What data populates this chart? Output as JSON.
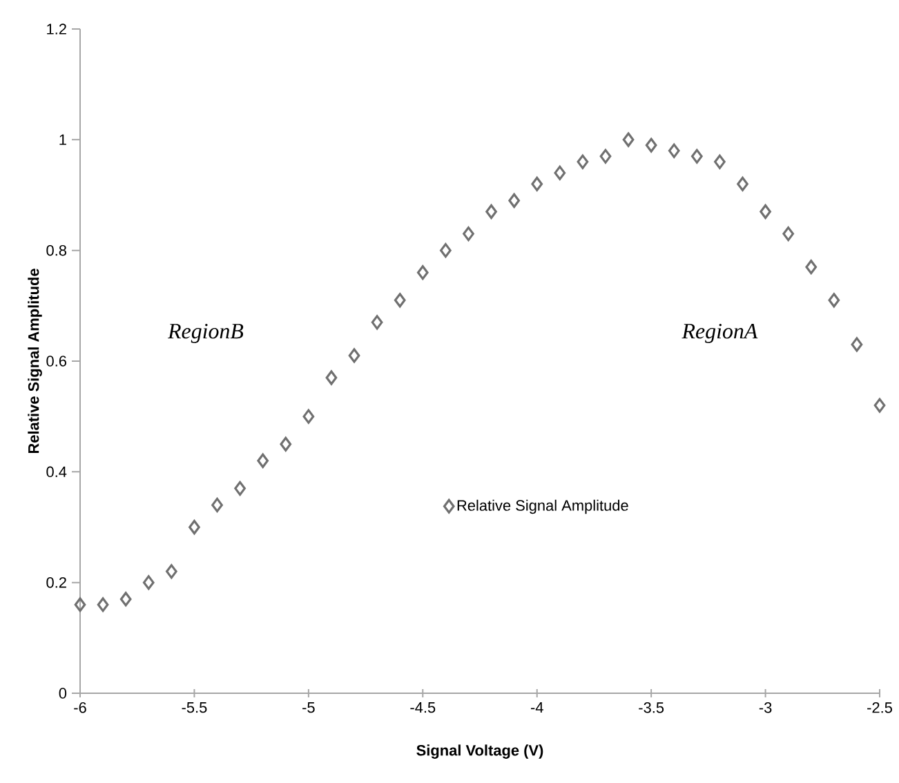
{
  "chart_data": {
    "type": "scatter",
    "xlabel": "Signal Voltage (V)",
    "ylabel": "Relative Signal Amplitude",
    "x": [
      -6,
      -5.9,
      -5.8,
      -5.7,
      -5.6,
      -5.5,
      -5.4,
      -5.3,
      -5.2,
      -5.1,
      -5.0,
      -4.9,
      -4.8,
      -4.7,
      -4.6,
      -4.5,
      -4.4,
      -4.3,
      -4.2,
      -4.1,
      -4.0,
      -3.9,
      -3.8,
      -3.7,
      -3.6,
      -3.5,
      -3.4,
      -3.3,
      -3.2,
      -3.1,
      -3.0,
      -2.9,
      -2.8,
      -2.7,
      -2.6,
      -2.5
    ],
    "series": [
      {
        "name": "Relative Signal Amplitude",
        "color": "#707070",
        "values": [
          0.16,
          0.16,
          0.17,
          0.2,
          0.22,
          0.3,
          0.34,
          0.37,
          0.42,
          0.45,
          0.5,
          0.57,
          0.61,
          0.67,
          0.71,
          0.76,
          0.8,
          0.83,
          0.87,
          0.89,
          0.92,
          0.94,
          0.96,
          0.97,
          1.0,
          0.99,
          0.98,
          0.97,
          0.96,
          0.92,
          0.87,
          0.83,
          0.77,
          0.71,
          0.63,
          0.52
        ]
      }
    ],
    "xlim": [
      -6,
      -2.5
    ],
    "xticks": [
      -6,
      -5.5,
      -5,
      -4.5,
      -4,
      -3.5,
      -3,
      -2.5
    ],
    "ylim": [
      0,
      1.2
    ],
    "yticks": [
      0,
      0.2,
      0.4,
      0.6,
      0.8,
      1,
      1.2
    ],
    "marker": "diamond",
    "legend": "bottom",
    "grid": false,
    "annotations": [
      "RegionB",
      "RegionA"
    ]
  }
}
